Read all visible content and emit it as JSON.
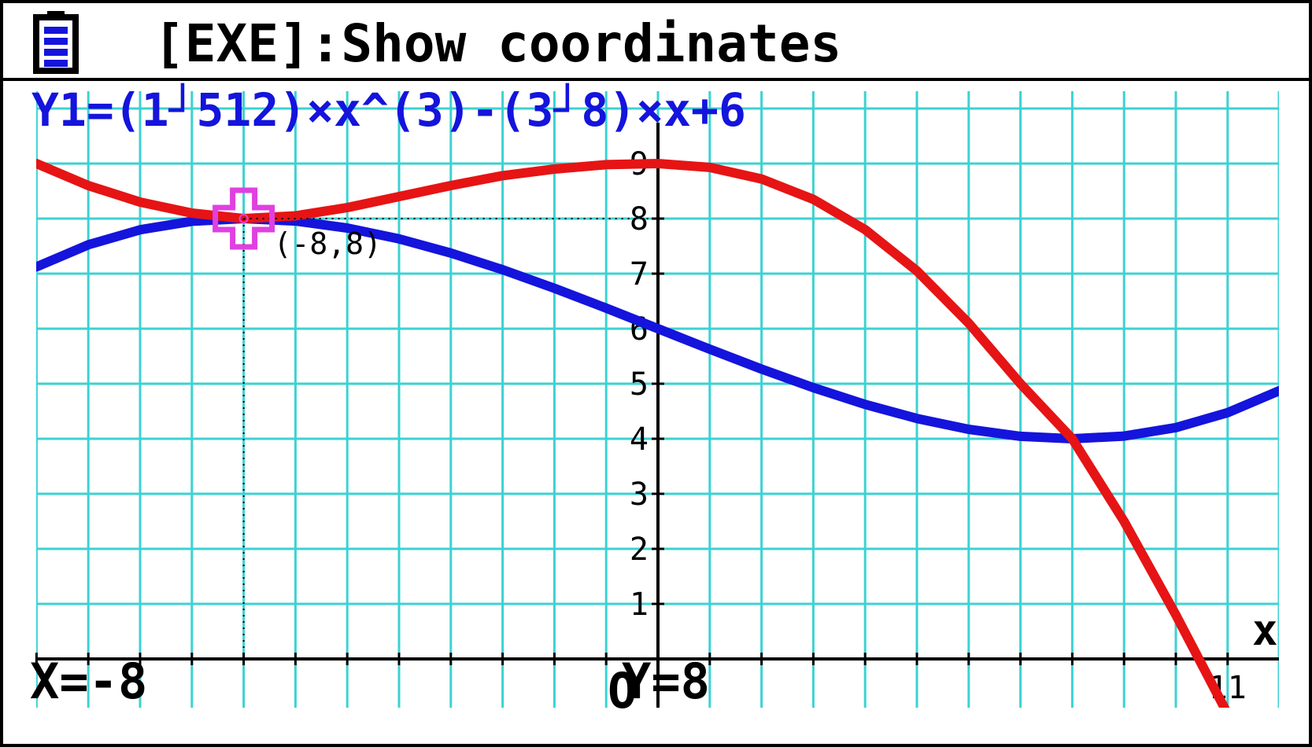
{
  "header": {
    "battery_icon": "battery-icon",
    "title": "[EXE]:Show coordinates"
  },
  "equation": "Y1=(1┘512)×x^(3)-(3┘8)×x+6",
  "status": {
    "x_readout": "X=-8",
    "y_readout": "Y=8"
  },
  "colors": {
    "grid": "#3cd2d2",
    "series1": "#1414dc",
    "series2": "#e61414",
    "cursor": "#e040e0",
    "equation": "#1414dc",
    "text": "#000000"
  },
  "chart_data": {
    "type": "line",
    "xlim": [
      -12,
      12
    ],
    "ylim": [
      -1,
      10
    ],
    "x_axis_label": "x",
    "origin_label": "O",
    "y_tick_labels": [
      "1",
      "2",
      "3",
      "4",
      "5",
      "6",
      "7",
      "8",
      "9"
    ],
    "x_tick_labels": [
      {
        "x": 11,
        "label": "11"
      }
    ],
    "grid": true,
    "series": [
      {
        "name": "Y1",
        "color": "#1414dc",
        "x": [
          -12,
          -11,
          -10,
          -9,
          -8,
          -7,
          -6,
          -5,
          -4,
          -3,
          -2,
          -1,
          0,
          1,
          2,
          3,
          4,
          5,
          6,
          7,
          8,
          9,
          10,
          11,
          12
        ],
        "y": [
          7.125,
          7.525,
          7.797,
          7.951,
          8.0,
          7.955,
          7.828,
          7.631,
          7.375,
          7.072,
          6.734,
          6.373,
          6.0,
          5.627,
          5.266,
          4.928,
          4.625,
          4.369,
          4.172,
          4.045,
          4.0,
          4.049,
          4.203,
          4.475,
          4.875
        ]
      },
      {
        "name": "",
        "color": "#e61414",
        "x": [
          -12,
          -11,
          -10,
          -9,
          -8,
          -7,
          -6,
          -5,
          -4,
          -3,
          -2,
          -1,
          0,
          1,
          2,
          3,
          4,
          5,
          6,
          7,
          8,
          9,
          10,
          11,
          11.6
        ],
        "y": [
          9.0,
          8.6,
          8.3,
          8.1,
          8.0,
          8.05,
          8.2,
          8.4,
          8.6,
          8.78,
          8.9,
          8.98,
          9.0,
          8.93,
          8.72,
          8.35,
          7.8,
          7.05,
          6.1,
          5.0,
          4.0,
          2.5,
          0.8,
          -1.0,
          -1.0
        ]
      }
    ],
    "trace_point": {
      "x": -8,
      "y": 8,
      "label": "(-8,8)"
    }
  }
}
